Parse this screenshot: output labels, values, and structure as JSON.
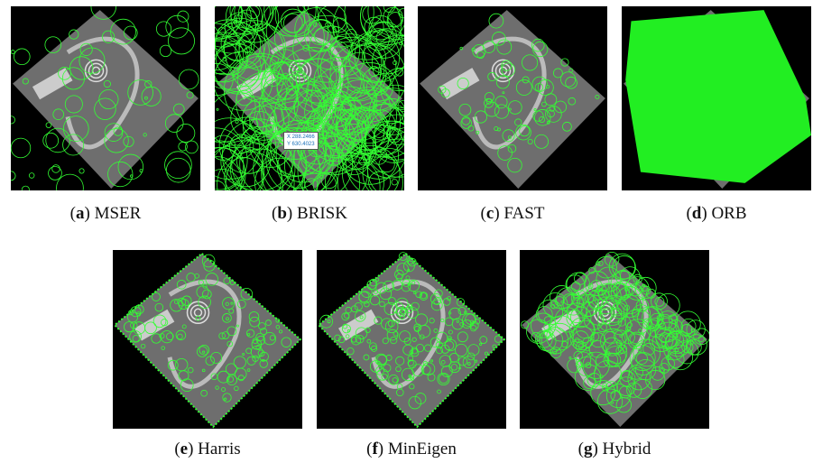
{
  "figure": {
    "panels": [
      {
        "label": "a",
        "name": "MSER"
      },
      {
        "label": "b",
        "name": "BRISK"
      },
      {
        "label": "c",
        "name": "FAST"
      },
      {
        "label": "d",
        "name": "ORB"
      },
      {
        "label": "e",
        "name": "Harris"
      },
      {
        "label": "f",
        "name": "MinEigen"
      },
      {
        "label": "g",
        "name": "Hybrid"
      }
    ],
    "annotation": {
      "x": "X 288.2466",
      "y": "Y 630.4023"
    }
  }
}
